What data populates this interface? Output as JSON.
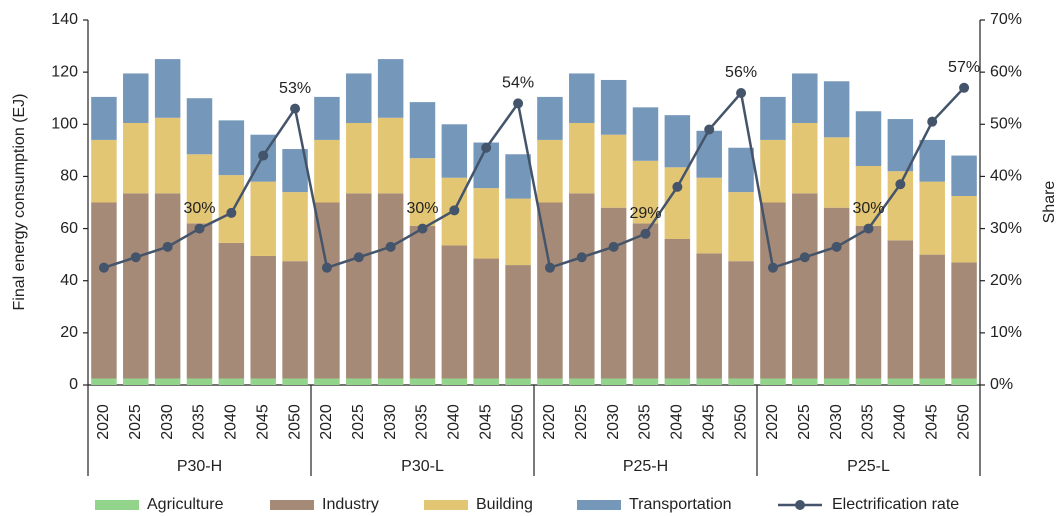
{
  "chart_data": {
    "type": "bar",
    "stacked": true,
    "ylabel": "Final energy consumption (EJ)",
    "y2label": "Share",
    "categories": [
      "2020",
      "2025",
      "2030",
      "2035",
      "2040",
      "2045",
      "2050",
      "2020",
      "2025",
      "2030",
      "2035",
      "2040",
      "2045",
      "2050",
      "2020",
      "2025",
      "2030",
      "2035",
      "2040",
      "2045",
      "2050",
      "2020",
      "2025",
      "2030",
      "2035",
      "2040",
      "2045",
      "2050"
    ],
    "groups": [
      "P30-H",
      "P30-L",
      "P25-H",
      "P25-L"
    ],
    "ylim": [
      0,
      140
    ],
    "yticks": [
      0,
      20,
      40,
      60,
      80,
      100,
      120,
      140
    ],
    "y2lim": [
      0,
      70
    ],
    "y2ticks": [
      {
        "value": 0,
        "label": "0%"
      },
      {
        "value": 10,
        "label": "10%"
      },
      {
        "value": 20,
        "label": "20%"
      },
      {
        "value": 30,
        "label": "30%"
      },
      {
        "value": 40,
        "label": "40%"
      },
      {
        "value": 50,
        "label": "50%"
      },
      {
        "value": 60,
        "label": "60%"
      },
      {
        "value": 70,
        "label": "70%"
      }
    ],
    "series": [
      {
        "name": "Agriculture",
        "color": "#93d48d",
        "values": [
          2.5,
          2.5,
          2.5,
          2.5,
          2.5,
          2.5,
          2.5,
          2.5,
          2.5,
          2.5,
          2.5,
          2.5,
          2.5,
          2.5,
          2.5,
          2.5,
          2.5,
          2.5,
          2.5,
          2.5,
          2.5,
          2.5,
          2.5,
          2.5,
          2.5,
          2.5,
          2.5,
          2.5
        ]
      },
      {
        "name": "Industry",
        "color": "#a68a78",
        "values": [
          67.5,
          71,
          71,
          59.5,
          52,
          47,
          45,
          67.5,
          71,
          71,
          58.5,
          51,
          46,
          43.5,
          67.5,
          71,
          65.5,
          59.5,
          53.5,
          48,
          45,
          67.5,
          71,
          65.5,
          58.5,
          53,
          47.5,
          44.5
        ]
      },
      {
        "name": "Building",
        "color": "#e3c674",
        "values": [
          24,
          27,
          29,
          26.5,
          26,
          28.5,
          26.5,
          24,
          27,
          29,
          26,
          26,
          27,
          25.5,
          24,
          27,
          28,
          24,
          27.5,
          29,
          26.5,
          24,
          27,
          27,
          23,
          26.5,
          28,
          25.5
        ]
      },
      {
        "name": "Transportation",
        "color": "#7597b9",
        "values": [
          16.5,
          19,
          22.5,
          21.5,
          21,
          18,
          16.5,
          16.5,
          19,
          22.5,
          21.5,
          20.5,
          17.5,
          17,
          16.5,
          19,
          21,
          20.5,
          20,
          18,
          17,
          16.5,
          19,
          21.5,
          21,
          20,
          16,
          15.5
        ]
      },
      {
        "name": "Electrification rate",
        "color": "#44546a",
        "type": "line",
        "axis": "y2",
        "values": [
          22.5,
          24.5,
          26.5,
          30,
          33,
          44,
          53,
          22.5,
          24.5,
          26.5,
          30,
          33.5,
          45.5,
          54,
          22.5,
          24.5,
          26.5,
          29,
          38,
          49,
          56,
          22.5,
          24.5,
          26.5,
          30,
          38.5,
          50.5,
          57
        ],
        "value_labels": [
          null,
          null,
          null,
          "30%",
          null,
          null,
          "53%",
          null,
          null,
          null,
          "30%",
          null,
          null,
          "54%",
          null,
          null,
          null,
          "29%",
          null,
          null,
          "56%",
          null,
          null,
          null,
          "30%",
          null,
          null,
          "57%"
        ]
      }
    ]
  }
}
